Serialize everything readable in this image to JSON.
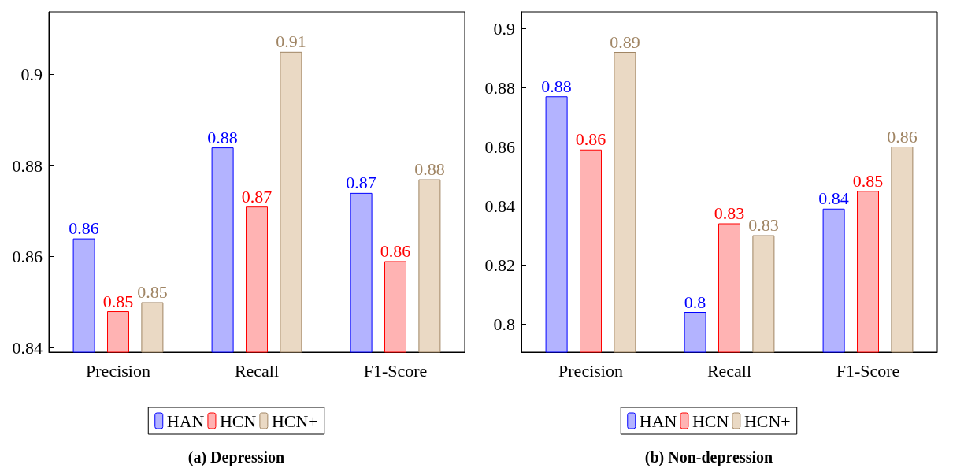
{
  "chart_data": [
    {
      "type": "bar",
      "title": "(a) Depression",
      "categories": [
        "Precision",
        "Recall",
        "F1-Score"
      ],
      "ylim": [
        0.839,
        0.9138
      ],
      "yticks": [
        0.84,
        0.86,
        0.88,
        0.9
      ],
      "legend": "bottom",
      "grid": false,
      "series": [
        {
          "name": "HAN",
          "color": "#b3b3ff",
          "values": [
            0.864,
            0.884,
            0.874
          ],
          "value_labels": [
            "0.86",
            "0.88",
            "0.87"
          ]
        },
        {
          "name": "HCN",
          "color": "#ffb3b3",
          "values": [
            0.848,
            0.871,
            0.859
          ],
          "value_labels": [
            "0.85",
            "0.87",
            "0.86"
          ]
        },
        {
          "name": "HCN+",
          "color": "#ead9c4",
          "values": [
            0.85,
            0.905,
            0.877
          ],
          "value_labels": [
            "0.85",
            "0.91",
            "0.88"
          ]
        }
      ]
    },
    {
      "type": "bar",
      "title": "(b) Non-depression",
      "categories": [
        "Precision",
        "Recall",
        "F1-Score"
      ],
      "ylim": [
        0.7904,
        0.9056
      ],
      "yticks": [
        0.8,
        0.82,
        0.84,
        0.86,
        0.88,
        0.9
      ],
      "legend": "bottom",
      "grid": false,
      "series": [
        {
          "name": "HAN",
          "color": "#b3b3ff",
          "values": [
            0.877,
            0.804,
            0.839
          ],
          "value_labels": [
            "0.88",
            "0.8",
            "0.84"
          ]
        },
        {
          "name": "HCN",
          "color": "#ffb3b3",
          "values": [
            0.859,
            0.834,
            0.845
          ],
          "value_labels": [
            "0.86",
            "0.83",
            "0.85"
          ]
        },
        {
          "name": "HCN+",
          "color": "#ead9c4",
          "values": [
            0.892,
            0.83,
            0.86
          ],
          "value_labels": [
            "0.89",
            "0.83",
            "0.86"
          ]
        }
      ]
    }
  ]
}
